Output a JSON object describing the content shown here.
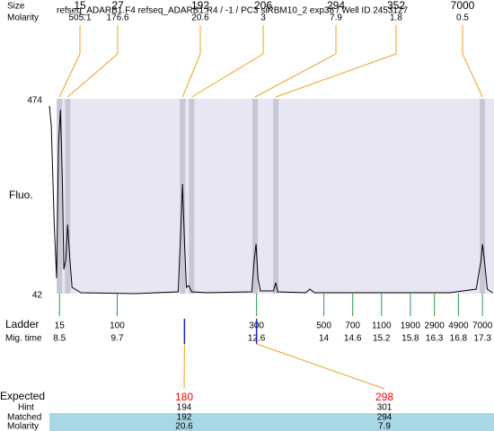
{
  "chart_data": {
    "type": "electropherogram",
    "title": "refseq_ADARB1.F4  refseq_ADARB1.R4 / -1 / PC3 siRBM10_2 exp38 / Well ID 2453127",
    "y_label": "Fluo.",
    "ylim": [
      42,
      474
    ],
    "yticks": [
      42,
      474
    ],
    "xlim": [
      8.29,
      17.54
    ],
    "plot_color": "#e6e6f5",
    "band_color": "#c8c8d4",
    "connector_color": "#f0a020",
    "ladder_color": "#2e9a50",
    "peaks": {
      "size_label": "Size",
      "molarity_label": "Molarity",
      "sizes": [
        15,
        27,
        192,
        206,
        294,
        352,
        7000
      ],
      "molarity": [
        505.1,
        176.6,
        20.6,
        3,
        7.9,
        1.8,
        0.5
      ],
      "mig_times": [
        8.5,
        8.67,
        11.06,
        11.25,
        12.57,
        13.0,
        17.3
      ]
    },
    "ladder": {
      "label": "Ladder",
      "time_label": "Mig. time",
      "sizes": [
        15,
        100,
        300,
        500,
        700,
        1100,
        1900,
        2900,
        4900,
        7000
      ],
      "mig_times": [
        8.5,
        9.7,
        12.6,
        14,
        14.6,
        15.2,
        15.8,
        16.3,
        16.8,
        17.3
      ]
    },
    "trace": {
      "color": "#000000",
      "x": [
        8.29,
        8.33,
        8.39,
        8.44,
        8.48,
        8.52,
        8.56,
        8.59,
        8.63,
        8.67,
        8.71,
        8.76,
        8.95,
        10.07,
        10.97,
        11.02,
        11.06,
        11.1,
        11.14,
        11.19,
        11.25,
        11.57,
        12.5,
        12.55,
        12.59,
        12.63,
        12.68,
        12.95,
        13.0,
        13.04,
        13.62,
        13.71,
        13.81,
        14.74,
        16.61,
        17.17,
        17.27,
        17.3,
        17.34,
        17.4,
        17.51
      ],
      "values": [
        458,
        414,
        195,
        76,
        374,
        450,
        295,
        96,
        116,
        195,
        126,
        56,
        44,
        42,
        46,
        175,
        285,
        156,
        56,
        60,
        46,
        44,
        46,
        116,
        152,
        76,
        48,
        48,
        66,
        46,
        44,
        52,
        44,
        44,
        44,
        52,
        116,
        152,
        116,
        52,
        44
      ]
    },
    "expected": {
      "label": "Expected",
      "values": [
        180,
        298
      ],
      "color": "#ff0000",
      "mig_times": [
        11.1,
        12.6
      ],
      "marker_color": "#2020c0",
      "hint_label": "Hint",
      "hint": [
        194,
        301
      ],
      "matched_label": "Matched",
      "matched": [
        192,
        294
      ],
      "molarity_label": "Molarity",
      "molarity": [
        20.6,
        7.9
      ],
      "row_color": "#a8d8e4"
    }
  }
}
